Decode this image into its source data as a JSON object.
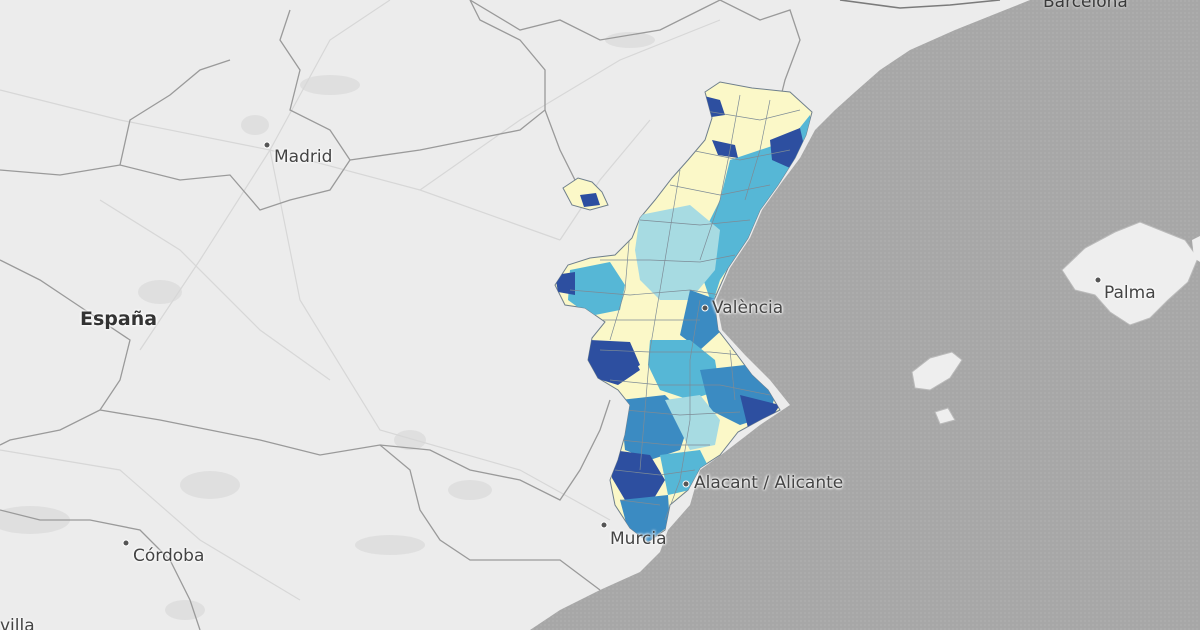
{
  "map": {
    "labels": {
      "barcelona": "Barcelona",
      "madrid": "Madrid",
      "espana": "España",
      "valencia": "València",
      "alicante": "Alacant / Alicante",
      "palma": "Palma",
      "murcia": "Murcia",
      "cordoba": "Córdoba",
      "sevilla_partial": "villa"
    },
    "colors": {
      "land": "#ececec",
      "sea": "#a9a9a9",
      "border": "#8d8d8d",
      "choropleth_low": "#fbf8c8",
      "choropleth_mid_low": "#a7dbe2",
      "choropleth_mid": "#56b7d6",
      "choropleth_mid_high": "#3b8bc2",
      "choropleth_high": "#2d4fa0"
    }
  }
}
